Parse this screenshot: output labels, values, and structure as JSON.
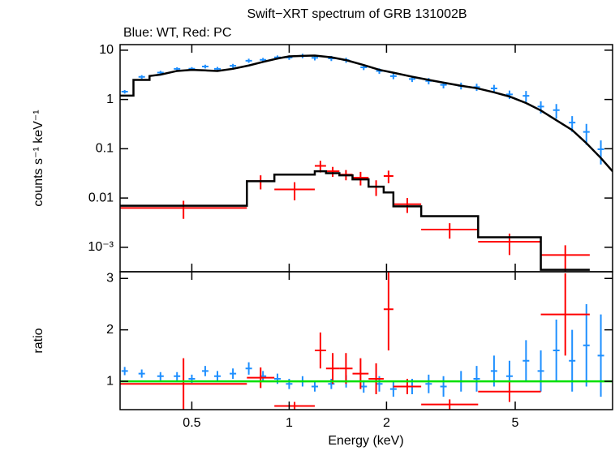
{
  "chart_data": [
    {
      "type": "scatter",
      "title": "Swift−XRT spectrum of GRB 131002B",
      "subtitle": "Blue: WT, Red: PC",
      "ylabel": "counts s⁻¹ keV⁻¹",
      "log_x": true,
      "log_y": true,
      "xlim": [
        0.3,
        10
      ],
      "ylim": [
        0.00032,
        13
      ],
      "yticks": [
        10,
        1,
        0.1,
        0.01,
        {
          "value": 0.001,
          "label": "10⁻³"
        }
      ],
      "series": [
        {
          "color": "#1e8fff",
          "x": [
            0.31,
            0.35,
            0.4,
            0.45,
            0.5,
            0.55,
            0.6,
            0.67,
            0.75,
            0.83,
            0.92,
            1.0,
            1.1,
            1.2,
            1.35,
            1.5,
            1.7,
            1.9,
            2.1,
            2.4,
            2.7,
            3.0,
            3.4,
            3.8,
            4.3,
            4.8,
            5.4,
            6.0,
            6.7,
            7.5,
            8.3,
            9.2
          ],
          "values": [
            1.44,
            2.88,
            3.52,
            4.18,
            4.2,
            4.68,
            4.18,
            4.83,
            6.13,
            6.38,
            7.14,
            7.13,
            7.7,
            7.02,
            6.84,
            6.3,
            4.5,
            3.8,
            2.98,
            2.61,
            2.38,
            1.98,
            1.9,
            1.79,
            1.68,
            1.27,
            1.19,
            0.72,
            0.61,
            0.34,
            0.22,
            0.098
          ],
          "errors": [
            0.12,
            0.25,
            0.3,
            0.35,
            0.35,
            0.4,
            0.4,
            0.45,
            0.6,
            0.6,
            0.7,
            0.75,
            0.8,
            0.8,
            0.8,
            0.75,
            0.55,
            0.5,
            0.4,
            0.35,
            0.35,
            0.3,
            0.3,
            0.3,
            0.3,
            0.25,
            0.3,
            0.2,
            0.2,
            0.12,
            0.1,
            0.05
          ]
        },
        {
          "color": "#ff0000",
          "bins": [
            0.3,
            0.74,
            0.9,
            1.2,
            1.3,
            1.43,
            1.57,
            1.76,
            1.96,
            2.1,
            2.56,
            3.84,
            6.0,
            8.5
          ],
          "values": [
            0.0063,
            0.022,
            0.015,
            0.045,
            0.035,
            0.03,
            0.026,
            0.017,
            0.028,
            0.0075,
            0.0023,
            0.0013,
            0.0007
          ],
          "errors": [
            0.0025,
            0.007,
            0.006,
            0.012,
            0.008,
            0.007,
            0.008,
            0.006,
            0.008,
            0.0025,
            0.0008,
            0.0006,
            0.0004
          ]
        }
      ],
      "models": [
        {
          "color": "#000000",
          "x": [
            0.3,
            0.33,
            0.33,
            0.37,
            0.37,
            0.4,
            0.45,
            0.5,
            0.55,
            0.6,
            0.67,
            0.75,
            0.83,
            0.92,
            1.0,
            1.1,
            1.2,
            1.35,
            1.5,
            1.7,
            1.9,
            2.1,
            2.4,
            2.7,
            3.0,
            3.4,
            3.8,
            4.3,
            4.8,
            5.4,
            6.0,
            6.7,
            7.5,
            8.3,
            9.2,
            10
          ],
          "values": [
            1.2,
            1.2,
            2.5,
            2.5,
            3.0,
            3.2,
            3.8,
            4.0,
            3.9,
            3.8,
            4.2,
            4.9,
            5.8,
            6.8,
            7.5,
            7.7,
            7.8,
            7.2,
            6.3,
            5.0,
            4.0,
            3.5,
            2.9,
            2.5,
            2.2,
            1.9,
            1.7,
            1.4,
            1.15,
            0.85,
            0.6,
            0.38,
            0.24,
            0.13,
            0.065,
            0.035
          ]
        },
        {
          "color": "#000000",
          "bins": [
            0.3,
            0.74,
            0.9,
            1.2,
            1.3,
            1.43,
            1.57,
            1.76,
            1.96,
            2.1,
            2.56,
            3.84,
            6.0,
            8.5
          ],
          "values": [
            0.007,
            0.022,
            0.03,
            0.035,
            0.032,
            0.029,
            0.024,
            0.017,
            0.013,
            0.0068,
            0.0043,
            0.0016,
            0.00035
          ]
        }
      ]
    },
    {
      "type": "scatter",
      "ylabel": "ratio",
      "xlabel": "Energy (keV)",
      "log_x": true,
      "xlim": [
        0.3,
        10
      ],
      "ylim": [
        0.45,
        3.13
      ],
      "xticks": [
        0.5,
        1,
        2,
        5
      ],
      "yticks": [
        1,
        2,
        3
      ],
      "series": [
        {
          "color": "#1e8fff",
          "x": [
            0.31,
            0.35,
            0.4,
            0.45,
            0.5,
            0.55,
            0.6,
            0.67,
            0.75,
            0.83,
            0.92,
            1.0,
            1.1,
            1.2,
            1.35,
            1.5,
            1.7,
            1.9,
            2.1,
            2.4,
            2.7,
            3.0,
            3.4,
            3.8,
            4.3,
            4.8,
            5.4,
            6.0,
            6.7,
            7.5,
            8.3,
            9.2
          ],
          "values": [
            1.2,
            1.15,
            1.1,
            1.1,
            1.05,
            1.2,
            1.1,
            1.15,
            1.25,
            1.1,
            1.05,
            0.95,
            1.0,
            0.9,
            0.95,
            1.0,
            0.9,
            0.95,
            0.85,
            0.9,
            0.95,
            0.9,
            1.0,
            1.05,
            1.2,
            1.1,
            1.4,
            1.2,
            1.6,
            1.4,
            1.7,
            1.5
          ],
          "errors": [
            0.08,
            0.08,
            0.08,
            0.08,
            0.08,
            0.1,
            0.1,
            0.1,
            0.12,
            0.1,
            0.1,
            0.1,
            0.1,
            0.1,
            0.1,
            0.12,
            0.12,
            0.15,
            0.15,
            0.15,
            0.18,
            0.2,
            0.2,
            0.25,
            0.3,
            0.3,
            0.4,
            0.4,
            0.6,
            0.6,
            0.8,
            0.8
          ]
        },
        {
          "color": "#ff0000",
          "bins": [
            0.3,
            0.74,
            0.9,
            1.2,
            1.3,
            1.43,
            1.57,
            1.76,
            1.96,
            2.1,
            2.56,
            3.84,
            6.0,
            8.5
          ],
          "values": [
            0.95,
            1.07,
            0.52,
            1.6,
            1.25,
            1.25,
            1.15,
            1.05,
            2.4,
            0.9,
            0.55,
            0.8,
            2.3
          ],
          "errors": [
            0.5,
            0.2,
            0.08,
            0.35,
            0.3,
            0.3,
            0.3,
            0.3,
            0.8,
            0.15,
            0.1,
            0.2,
            0.8
          ]
        }
      ],
      "reference": {
        "value": 1,
        "color": "#00e000"
      }
    }
  ]
}
